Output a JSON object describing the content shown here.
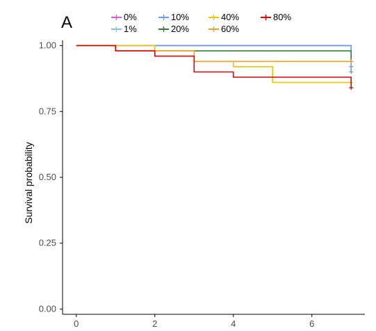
{
  "panel_label": "A",
  "chart_data": {
    "type": "line",
    "title": "",
    "xlabel": "",
    "ylabel": "Survival probability",
    "xlim": [
      -0.35,
      7.35
    ],
    "ylim": [
      -0.02,
      1.02
    ],
    "x_ticks": [
      0,
      2,
      4,
      6
    ],
    "y_ticks": [
      0.0,
      0.25,
      0.5,
      0.75,
      1.0
    ],
    "x_tick_labels": [
      "0",
      "2",
      "4",
      "6"
    ],
    "y_tick_labels": [
      "0.00",
      "0.25",
      "0.50",
      "0.75",
      "1.00"
    ],
    "grid": false,
    "legend_position": "top",
    "series": [
      {
        "name": "0%",
        "color": "#d45ad6",
        "points": [
          [
            0,
            1.0
          ],
          [
            7,
            1.0
          ]
        ],
        "censor": []
      },
      {
        "name": "1%",
        "color": "#7ec8e3",
        "points": [
          [
            0,
            1.0
          ],
          [
            7,
            1.0
          ]
        ],
        "censor": []
      },
      {
        "name": "10%",
        "color": "#6a9be6",
        "points": [
          [
            0,
            1.0
          ],
          [
            2,
            1.0
          ],
          [
            7,
            1.0
          ],
          [
            7,
            0.9
          ]
        ],
        "censor": [
          [
            7,
            0.92
          ],
          [
            7,
            0.9
          ]
        ]
      },
      {
        "name": "20%",
        "color": "#2f7f35",
        "points": [
          [
            0,
            1.0
          ],
          [
            1,
            1.0
          ],
          [
            1,
            0.98
          ],
          [
            7,
            0.98
          ],
          [
            7,
            0.94
          ]
        ],
        "censor": [
          [
            7,
            0.94
          ]
        ]
      },
      {
        "name": "40%",
        "color": "#f3c300",
        "points": [
          [
            0,
            1.0
          ],
          [
            2,
            1.0
          ],
          [
            2,
            0.98
          ],
          [
            3,
            0.98
          ],
          [
            3,
            0.94
          ],
          [
            4,
            0.94
          ],
          [
            4,
            0.92
          ],
          [
            5,
            0.92
          ],
          [
            5,
            0.86
          ],
          [
            7,
            0.86
          ]
        ],
        "censor": [
          [
            7,
            0.86
          ]
        ]
      },
      {
        "name": "60%",
        "color": "#f0a020",
        "points": [
          [
            0,
            1.0
          ],
          [
            1,
            1.0
          ],
          [
            1,
            0.98
          ],
          [
            3,
            0.98
          ],
          [
            3,
            0.94
          ],
          [
            7,
            0.94
          ]
        ],
        "censor": [
          [
            7,
            0.94
          ]
        ]
      },
      {
        "name": "80%",
        "color": "#e00000",
        "points": [
          [
            0,
            1.0
          ],
          [
            1,
            1.0
          ],
          [
            1,
            0.98
          ],
          [
            2,
            0.98
          ],
          [
            2,
            0.96
          ],
          [
            3,
            0.96
          ],
          [
            3,
            0.9
          ],
          [
            4,
            0.9
          ],
          [
            4,
            0.88
          ],
          [
            7,
            0.88
          ],
          [
            7,
            0.84
          ]
        ],
        "censor": [
          [
            7,
            0.84
          ]
        ]
      }
    ]
  }
}
